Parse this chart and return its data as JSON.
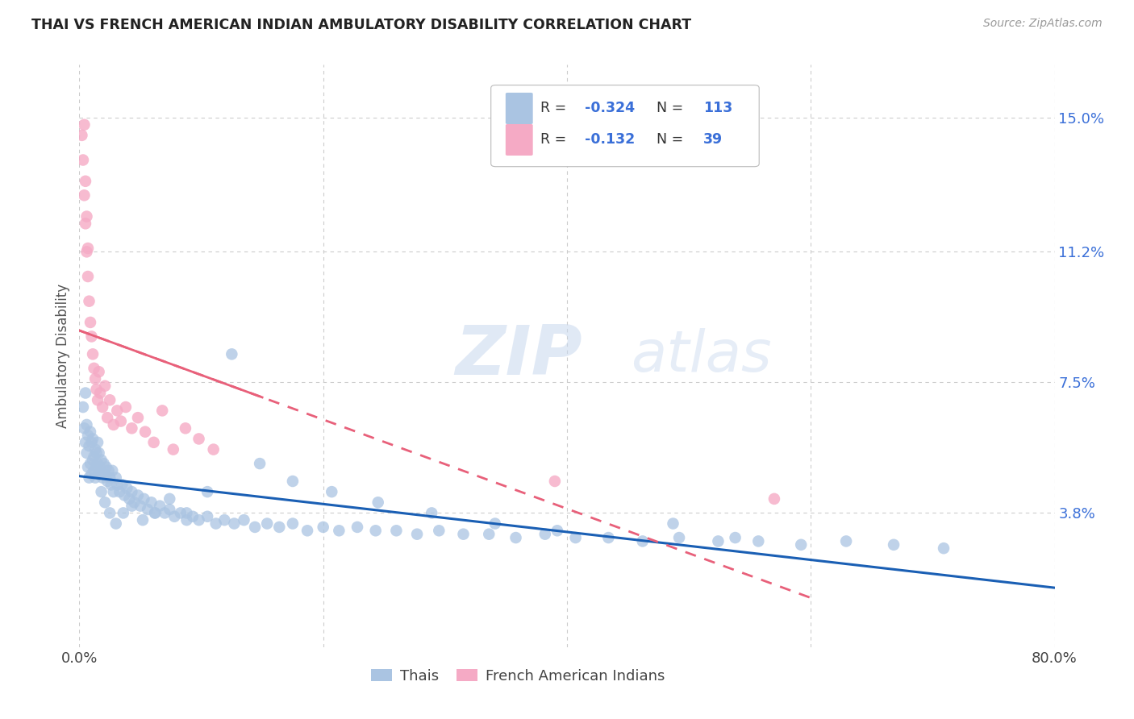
{
  "title": "THAI VS FRENCH AMERICAN INDIAN AMBULATORY DISABILITY CORRELATION CHART",
  "source": "Source: ZipAtlas.com",
  "ylabel": "Ambulatory Disability",
  "xlim": [
    0.0,
    0.8
  ],
  "ylim": [
    0.0,
    0.165
  ],
  "yticks": [
    0.038,
    0.075,
    0.112,
    0.15
  ],
  "ytick_labels": [
    "3.8%",
    "7.5%",
    "11.2%",
    "15.0%"
  ],
  "xtick_positions": [
    0.0,
    0.2,
    0.4,
    0.6,
    0.8
  ],
  "xtick_labels": [
    "0.0%",
    "",
    "",
    "",
    "80.0%"
  ],
  "legend_r_thai": "-0.324",
  "legend_n_thai": "113",
  "legend_r_french": "-0.132",
  "legend_n_french": "39",
  "thai_color": "#aac4e2",
  "french_color": "#f5aac5",
  "thai_line_color": "#1a5fb4",
  "french_line_color": "#e8607a",
  "legend_color": "#3a6fd8",
  "watermark_zip": "ZIP",
  "watermark_atlas": "atlas",
  "background_color": "#ffffff",
  "thai_seed": 12,
  "french_seed": 77,
  "thai_x": [
    0.003,
    0.004,
    0.005,
    0.005,
    0.006,
    0.006,
    0.007,
    0.007,
    0.008,
    0.008,
    0.009,
    0.009,
    0.01,
    0.01,
    0.011,
    0.011,
    0.012,
    0.012,
    0.013,
    0.013,
    0.014,
    0.014,
    0.015,
    0.015,
    0.016,
    0.016,
    0.017,
    0.018,
    0.019,
    0.02,
    0.021,
    0.022,
    0.023,
    0.024,
    0.025,
    0.026,
    0.027,
    0.028,
    0.03,
    0.031,
    0.033,
    0.035,
    0.037,
    0.039,
    0.041,
    0.043,
    0.045,
    0.048,
    0.05,
    0.053,
    0.056,
    0.059,
    0.062,
    0.066,
    0.07,
    0.074,
    0.078,
    0.083,
    0.088,
    0.093,
    0.098,
    0.105,
    0.112,
    0.119,
    0.127,
    0.135,
    0.144,
    0.154,
    0.164,
    0.175,
    0.187,
    0.2,
    0.213,
    0.228,
    0.243,
    0.26,
    0.277,
    0.295,
    0.315,
    0.336,
    0.358,
    0.382,
    0.407,
    0.434,
    0.462,
    0.492,
    0.524,
    0.557,
    0.592,
    0.629,
    0.668,
    0.709,
    0.487,
    0.538,
    0.392,
    0.341,
    0.289,
    0.245,
    0.207,
    0.175,
    0.148,
    0.125,
    0.105,
    0.088,
    0.074,
    0.062,
    0.052,
    0.043,
    0.036,
    0.03,
    0.025,
    0.021,
    0.018
  ],
  "thai_y": [
    0.068,
    0.062,
    0.058,
    0.072,
    0.055,
    0.063,
    0.051,
    0.06,
    0.048,
    0.057,
    0.052,
    0.061,
    0.049,
    0.058,
    0.053,
    0.059,
    0.05,
    0.054,
    0.048,
    0.056,
    0.051,
    0.055,
    0.052,
    0.058,
    0.049,
    0.055,
    0.051,
    0.053,
    0.048,
    0.052,
    0.049,
    0.051,
    0.047,
    0.05,
    0.048,
    0.046,
    0.05,
    0.044,
    0.048,
    0.046,
    0.044,
    0.046,
    0.043,
    0.045,
    0.042,
    0.044,
    0.041,
    0.043,
    0.04,
    0.042,
    0.039,
    0.041,
    0.038,
    0.04,
    0.038,
    0.039,
    0.037,
    0.038,
    0.036,
    0.037,
    0.036,
    0.037,
    0.035,
    0.036,
    0.035,
    0.036,
    0.034,
    0.035,
    0.034,
    0.035,
    0.033,
    0.034,
    0.033,
    0.034,
    0.033,
    0.033,
    0.032,
    0.033,
    0.032,
    0.032,
    0.031,
    0.032,
    0.031,
    0.031,
    0.03,
    0.031,
    0.03,
    0.03,
    0.029,
    0.03,
    0.029,
    0.028,
    0.035,
    0.031,
    0.033,
    0.035,
    0.038,
    0.041,
    0.044,
    0.047,
    0.052,
    0.083,
    0.044,
    0.038,
    0.042,
    0.038,
    0.036,
    0.04,
    0.038,
    0.035,
    0.038,
    0.041,
    0.044
  ],
  "french_x": [
    0.002,
    0.003,
    0.004,
    0.004,
    0.005,
    0.005,
    0.006,
    0.006,
    0.007,
    0.007,
    0.008,
    0.009,
    0.01,
    0.011,
    0.012,
    0.013,
    0.014,
    0.015,
    0.016,
    0.017,
    0.019,
    0.021,
    0.023,
    0.025,
    0.028,
    0.031,
    0.034,
    0.038,
    0.043,
    0.048,
    0.054,
    0.061,
    0.068,
    0.077,
    0.087,
    0.098,
    0.11,
    0.39,
    0.57
  ],
  "french_y": [
    0.145,
    0.138,
    0.128,
    0.148,
    0.12,
    0.132,
    0.112,
    0.122,
    0.105,
    0.113,
    0.098,
    0.092,
    0.088,
    0.083,
    0.079,
    0.076,
    0.073,
    0.07,
    0.078,
    0.072,
    0.068,
    0.074,
    0.065,
    0.07,
    0.063,
    0.067,
    0.064,
    0.068,
    0.062,
    0.065,
    0.061,
    0.058,
    0.067,
    0.056,
    0.062,
    0.059,
    0.056,
    0.047,
    0.042
  ]
}
